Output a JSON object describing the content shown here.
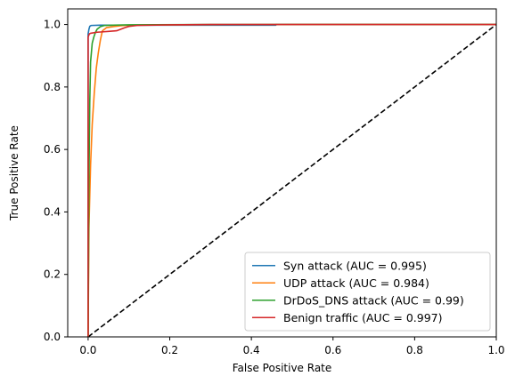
{
  "chart_data": {
    "type": "line",
    "title": "",
    "xlabel": "False Positive Rate",
    "ylabel": "True Positive Rate",
    "xlim": [
      -0.05,
      1.0
    ],
    "ylim": [
      0.0,
      1.05
    ],
    "xticks": [
      "0.0",
      "0.2",
      "0.4",
      "0.6",
      "0.8",
      "1.0"
    ],
    "yticks": [
      "0.0",
      "0.2",
      "0.4",
      "0.6",
      "0.8",
      "1.0"
    ],
    "grid": false,
    "legend_position": "lower-right",
    "series": [
      {
        "name": "Syn attack (AUC = 0.995)",
        "color": "#1f77b4",
        "style": "solid",
        "x": [
          0.0,
          0.0,
          0.002,
          0.004,
          0.006,
          0.008,
          0.03,
          0.46,
          0.46,
          1.0
        ],
        "y": [
          0.0,
          0.97,
          0.985,
          0.994,
          0.996,
          0.997,
          0.998,
          0.998,
          1.0,
          1.0
        ]
      },
      {
        "name": "UDP attack (AUC = 0.984)",
        "color": "#ff7f0e",
        "style": "solid",
        "x": [
          0.0,
          0.002,
          0.006,
          0.01,
          0.015,
          0.02,
          0.025,
          0.03,
          0.035,
          0.045,
          0.06,
          0.08,
          0.1,
          0.2,
          0.5,
          1.0
        ],
        "y": [
          0.0,
          0.35,
          0.55,
          0.68,
          0.78,
          0.86,
          0.91,
          0.95,
          0.98,
          0.99,
          0.993,
          0.996,
          0.998,
          0.999,
          1.0,
          1.0
        ]
      },
      {
        "name": "DrDoS_DNS attack (AUC = 0.99)",
        "color": "#2ca02c",
        "style": "solid",
        "x": [
          0.0,
          0.002,
          0.004,
          0.006,
          0.01,
          0.014,
          0.018,
          0.022,
          0.03,
          0.04,
          0.06,
          0.1,
          0.3,
          1.0
        ],
        "y": [
          0.0,
          0.5,
          0.75,
          0.88,
          0.94,
          0.96,
          0.975,
          0.985,
          0.993,
          0.997,
          0.998,
          0.999,
          1.0,
          1.0
        ]
      },
      {
        "name": "Benign traffic (AUC = 0.997)",
        "color": "#d62728",
        "style": "solid",
        "x": [
          0.0,
          0.0,
          0.003,
          0.006,
          0.02,
          0.03,
          0.05,
          0.07,
          0.08,
          0.09,
          0.1,
          0.12,
          0.2,
          0.3,
          1.0
        ],
        "y": [
          0.0,
          0.96,
          0.97,
          0.972,
          0.975,
          0.976,
          0.978,
          0.98,
          0.985,
          0.99,
          0.994,
          0.997,
          0.999,
          1.0,
          1.0
        ]
      },
      {
        "name": "",
        "color": "#000000",
        "style": "dashed",
        "x": [
          0.0,
          1.0
        ],
        "y": [
          0.0,
          1.0
        ]
      }
    ]
  }
}
